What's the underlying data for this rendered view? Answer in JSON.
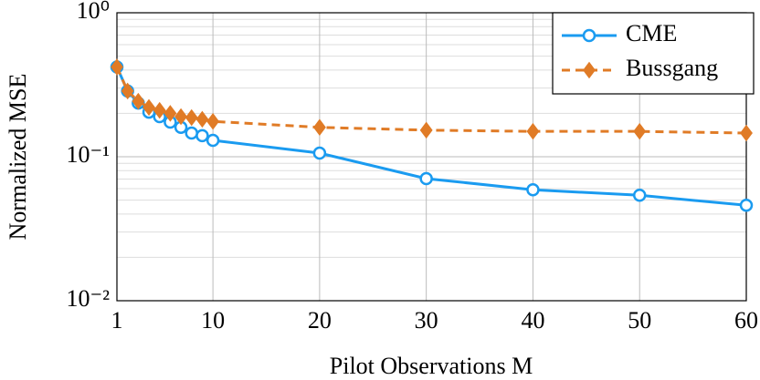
{
  "chart_data": {
    "type": "line",
    "x_label": "Pilot Observations M",
    "y_label": "Normalized MSE",
    "x": [
      1,
      2,
      3,
      4,
      5,
      6,
      7,
      8,
      9,
      10,
      20,
      30,
      40,
      50,
      60
    ],
    "series": [
      {
        "name": "CME",
        "color": "#1a9bf0",
        "marker": "circle",
        "dashed": false,
        "values": [
          0.42,
          0.286,
          0.236,
          0.204,
          0.19,
          0.174,
          0.16,
          0.146,
          0.14,
          0.13,
          0.106,
          0.0705,
          0.059,
          0.054,
          0.046
        ]
      },
      {
        "name": "Bussgang",
        "color": "#e07b26",
        "marker": "diamond",
        "dashed": true,
        "values": [
          0.42,
          0.286,
          0.243,
          0.22,
          0.21,
          0.2,
          0.19,
          0.187,
          0.182,
          0.176,
          0.16,
          0.153,
          0.15,
          0.15,
          0.146
        ]
      }
    ],
    "xlim": [
      1,
      60
    ],
    "xticks": [
      1,
      10,
      20,
      30,
      40,
      50,
      60
    ],
    "ylim": [
      0.01,
      1
    ],
    "log_y": true,
    "yticks": [
      {
        "value": 1,
        "label": "10⁰"
      },
      {
        "value": 0.1,
        "label": "10⁻¹"
      },
      {
        "value": 0.01,
        "label": "10⁻²"
      }
    ],
    "grid": true,
    "minor_grid": true,
    "legend": "top-right"
  }
}
